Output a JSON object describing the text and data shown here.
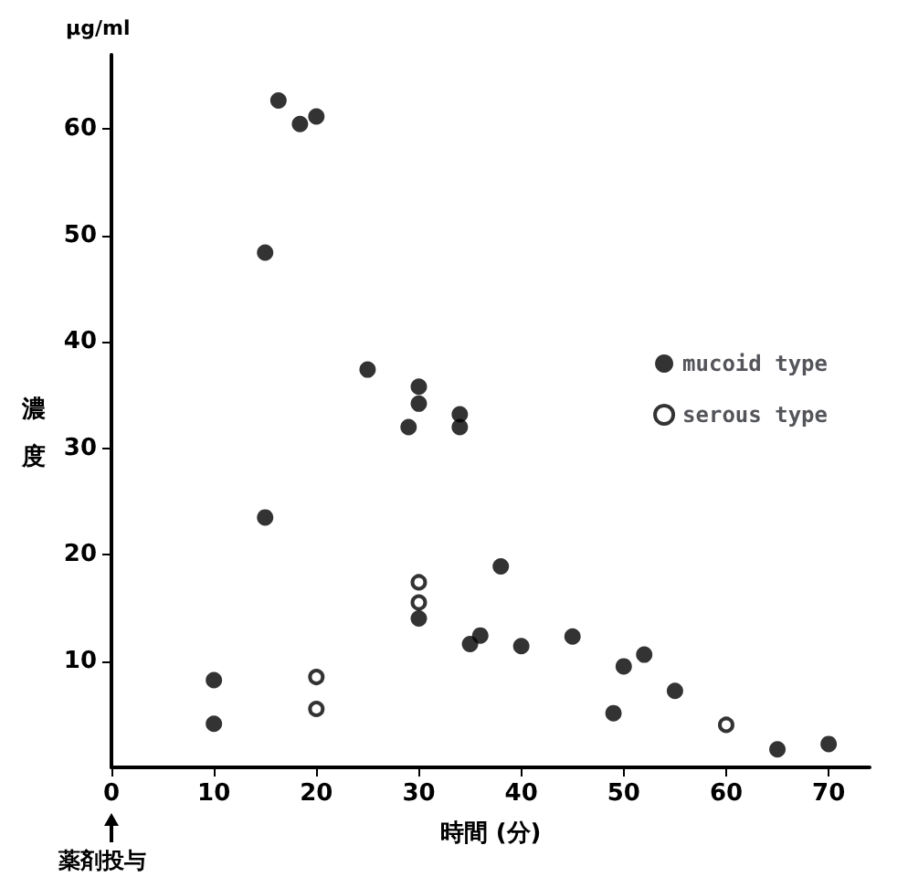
{
  "chart_data": {
    "type": "scatter",
    "xlabel": "時間 (分)",
    "ylabel": "濃度",
    "annotations": [
      "μg/ml",
      "薬剤投与"
    ],
    "xlim": [
      0,
      74
    ],
    "xticks": [
      0,
      10,
      20,
      30,
      40,
      50,
      60,
      70
    ],
    "ylim": [
      0,
      67
    ],
    "yticks": [
      10,
      20,
      30,
      40,
      50,
      60
    ],
    "grid": false,
    "legend": "top right",
    "marker": "circle",
    "series": [
      {
        "name": "mucoid type",
        "color": "#000000",
        "x": [
          10,
          10,
          15,
          15,
          16.3,
          18.4,
          20,
          25,
          30,
          30,
          29,
          34,
          34,
          30,
          38,
          35,
          36,
          40,
          45,
          49,
          50,
          52,
          55,
          65,
          70
        ],
        "values": [
          8.2,
          4.1,
          23.5,
          48.4,
          62.7,
          60.5,
          61.2,
          37.4,
          35.8,
          34.2,
          32,
          33.2,
          32,
          14,
          18.9,
          11.6,
          12.4,
          11.4,
          12.3,
          5.1,
          9.5,
          10.6,
          7.2,
          1.7,
          2.2
        ]
      },
      {
        "name": "serous type",
        "color": "#000000",
        "x": [
          20,
          20,
          30,
          30,
          60
        ],
        "values": [
          8.5,
          5.5,
          17.4,
          15.5,
          4.0
        ]
      }
    ]
  }
}
